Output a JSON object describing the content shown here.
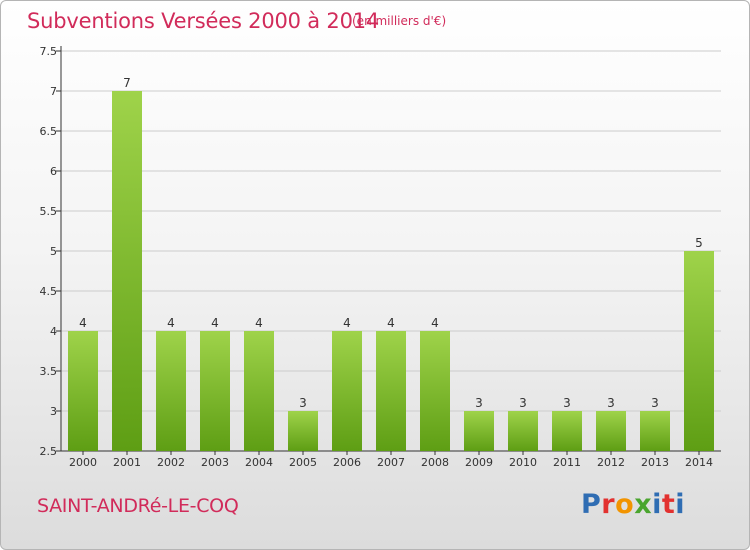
{
  "header": {
    "title": "Subventions Versées 2000 à 2014",
    "unit": "(en milliers d'€)"
  },
  "footer": {
    "commune": "SAINT-ANDRé-LE-COQ",
    "logo": {
      "text": "Proxiti",
      "colors": [
        "#2f6db3",
        "#e2312f",
        "#f29400",
        "#4aa52e",
        "#2f6db3",
        "#e2312f",
        "#2f6db3"
      ]
    }
  },
  "colors": {
    "title": "#d12b5a",
    "bar_top": "#9fd34a",
    "bar_bottom": "#5e9e14",
    "grid": "#cccccc"
  },
  "chart_data": {
    "type": "bar",
    "title": "Subventions Versées 2000 à 2014",
    "subtitle": "(en milliers d'€)",
    "categories": [
      "2000",
      "2001",
      "2002",
      "2003",
      "2004",
      "2005",
      "2006",
      "2007",
      "2008",
      "2009",
      "2010",
      "2011",
      "2012",
      "2013",
      "2014"
    ],
    "values": [
      4,
      7,
      4,
      4,
      4,
      3,
      4,
      4,
      4,
      3,
      3,
      3,
      3,
      3,
      5
    ],
    "ylim": [
      2.5,
      7.5
    ],
    "yticks": [
      "2.5",
      "3",
      "3.5",
      "4",
      "4.5",
      "5",
      "5.5",
      "6",
      "6.5",
      "7",
      "7.5"
    ],
    "grid": true
  }
}
